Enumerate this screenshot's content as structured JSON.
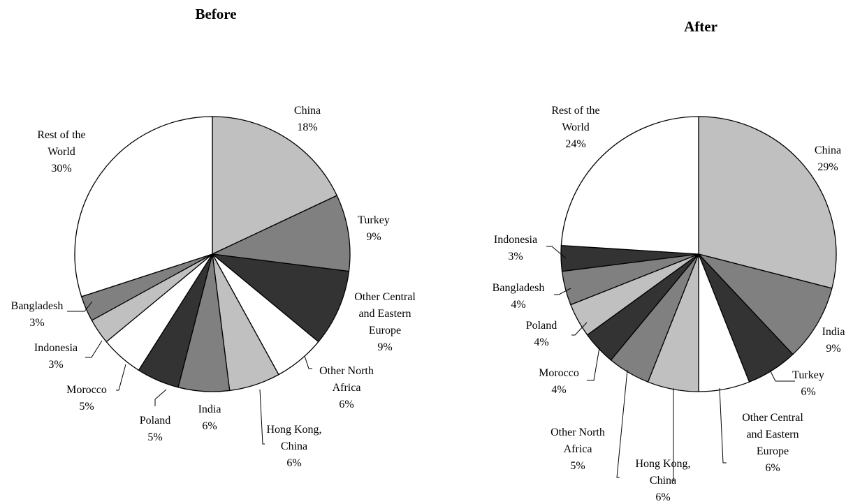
{
  "colors": {
    "light_gray": "#c0c0c0",
    "mid_gray": "#808080",
    "dark_gray": "#333333",
    "white": "#ffffff",
    "outline": "#000000"
  },
  "chart_data": [
    {
      "type": "pie",
      "title": "Before",
      "start": "12 o'clock",
      "direction": "clockwise",
      "slices": [
        {
          "label": [
            "China",
            "18%"
          ],
          "value": 18,
          "color": "#c0c0c0"
        },
        {
          "label": [
            "Turkey",
            "9%"
          ],
          "value": 9,
          "color": "#808080"
        },
        {
          "label": [
            "Other Central",
            "and Eastern",
            "Europe",
            "9%"
          ],
          "value": 9,
          "color": "#333333"
        },
        {
          "label": [
            "Other North",
            "Africa",
            "6%"
          ],
          "value": 6,
          "color": "#ffffff"
        },
        {
          "label": [
            "Hong Kong,",
            "China",
            "6%"
          ],
          "value": 6,
          "color": "#c0c0c0"
        },
        {
          "label": [
            "India",
            "6%"
          ],
          "value": 6,
          "color": "#808080"
        },
        {
          "label": [
            "Poland",
            "5%"
          ],
          "value": 5,
          "color": "#333333"
        },
        {
          "label": [
            "Morocco",
            "5%"
          ],
          "value": 5,
          "color": "#ffffff"
        },
        {
          "label": [
            "Indonesia",
            "3%"
          ],
          "value": 3,
          "color": "#c0c0c0"
        },
        {
          "label": [
            "Bangladesh",
            "3%"
          ],
          "value": 3,
          "color": "#808080"
        },
        {
          "label": [
            "Rest of the",
            "World",
            "30%"
          ],
          "value": 30,
          "color": "#ffffff"
        }
      ]
    },
    {
      "type": "pie",
      "title": "After",
      "start": "12 o'clock",
      "direction": "clockwise",
      "slices": [
        {
          "label": [
            "China",
            "29%"
          ],
          "value": 29,
          "color": "#c0c0c0"
        },
        {
          "label": [
            "India",
            "9%"
          ],
          "value": 9,
          "color": "#808080"
        },
        {
          "label": [
            "Turkey",
            "6%"
          ],
          "value": 6,
          "color": "#333333"
        },
        {
          "label": [
            "Other Central",
            "and Eastern",
            "Europe",
            "6%"
          ],
          "value": 6,
          "color": "#ffffff"
        },
        {
          "label": [
            "Hong Kong,",
            "China",
            "6%"
          ],
          "value": 6,
          "color": "#c0c0c0"
        },
        {
          "label": [
            "Other North",
            "Africa",
            "5%"
          ],
          "value": 5,
          "color": "#808080"
        },
        {
          "label": [
            "Morocco",
            "4%"
          ],
          "value": 4,
          "color": "#333333"
        },
        {
          "label": [
            "Poland",
            "4%"
          ],
          "value": 4,
          "color": "#c0c0c0"
        },
        {
          "label": [
            "Bangladesh",
            "4%"
          ],
          "value": 4,
          "color": "#808080"
        },
        {
          "label": [
            "Indonesia",
            "3%"
          ],
          "value": 3,
          "color": "#333333"
        },
        {
          "label": [
            "Rest of the",
            "World",
            "24%"
          ],
          "value": 24,
          "color": "#ffffff"
        }
      ]
    }
  ]
}
